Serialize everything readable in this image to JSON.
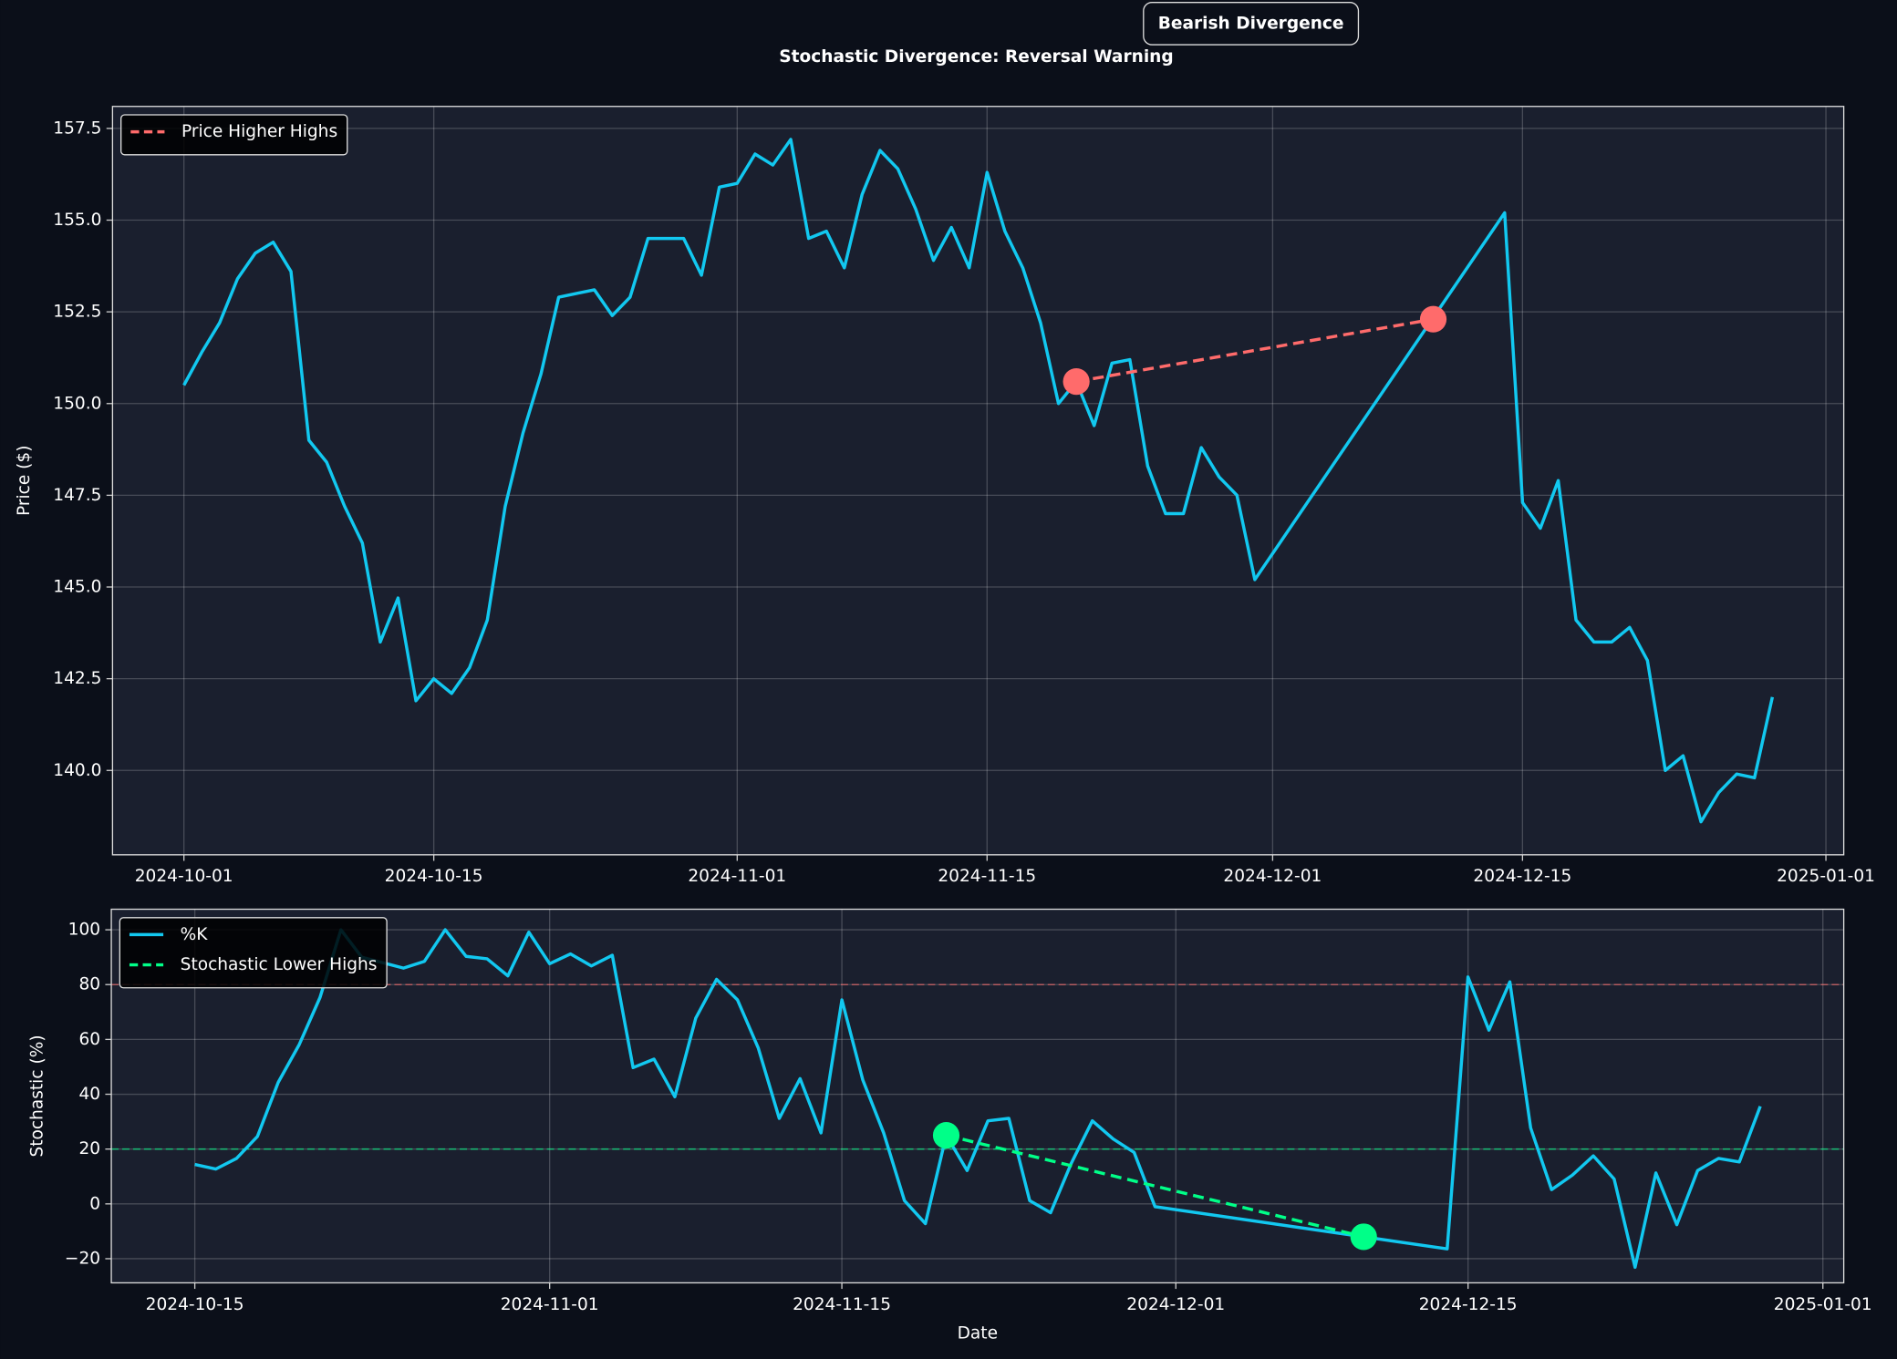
{
  "chart_data": [
    {
      "type": "line",
      "title": "Stochastic Divergence: Reversal Warning",
      "annotation": "Bearish Divergence",
      "ylabel": "Price ($)",
      "xlim": [
        "2024-09-27",
        "2025-01-02"
      ],
      "xticks": [
        "2024-10-01",
        "2024-10-15",
        "2024-11-01",
        "2024-11-15",
        "2024-12-01",
        "2024-12-15",
        "2025-01-01"
      ],
      "ylim": [
        137.7,
        158.1
      ],
      "yticks": [
        {
          "value": 140,
          "label": "140.0"
        },
        142.5,
        {
          "value": 145,
          "label": "145.0"
        },
        147.5,
        {
          "value": 150,
          "label": "150.0"
        },
        152.5,
        {
          "value": 155,
          "label": "155.0"
        },
        157.5
      ],
      "grid": true,
      "legend": "upper left",
      "series": [
        {
          "color": "#12c8f0",
          "x": [
            "2024-10-01",
            "2024-10-02",
            "2024-10-03",
            "2024-10-04",
            "2024-10-05",
            "2024-10-06",
            "2024-10-07",
            "2024-10-08",
            "2024-10-09",
            "2024-10-10",
            "2024-10-11",
            "2024-10-12",
            "2024-10-13",
            "2024-10-14",
            "2024-10-15",
            "2024-10-16",
            "2024-10-17",
            "2024-10-18",
            "2024-10-19",
            "2024-10-20",
            "2024-10-21",
            "2024-10-22",
            "2024-10-23",
            "2024-10-24",
            "2024-10-25",
            "2024-10-26",
            "2024-10-27",
            "2024-10-28",
            "2024-10-29",
            "2024-10-30",
            "2024-10-31",
            "2024-11-01",
            "2024-11-02",
            "2024-11-03",
            "2024-11-04",
            "2024-11-05",
            "2024-11-06",
            "2024-11-07",
            "2024-11-08",
            "2024-11-09",
            "2024-11-10",
            "2024-11-11",
            "2024-11-12",
            "2024-11-13",
            "2024-11-14",
            "2024-11-15",
            "2024-11-16",
            "2024-11-17",
            "2024-11-18",
            "2024-11-19",
            "2024-11-20",
            "2024-11-21",
            "2024-11-22",
            "2024-11-23",
            "2024-11-24",
            "2024-11-25",
            "2024-11-26",
            "2024-11-27",
            "2024-11-28",
            "2024-11-29",
            "2024-11-30",
            "2024-12-14",
            "2024-12-15",
            "2024-12-16",
            "2024-12-17",
            "2024-12-18",
            "2024-12-19",
            "2024-12-20",
            "2024-12-21",
            "2024-12-22",
            "2024-12-23",
            "2024-12-24",
            "2024-12-25",
            "2024-12-26",
            "2024-12-27",
            "2024-12-28",
            "2024-12-29"
          ],
          "values": [
            150.5,
            151.4,
            152.2,
            153.4,
            154.1,
            154.4,
            153.6,
            149.0,
            148.4,
            147.2,
            146.2,
            143.5,
            144.7,
            141.9,
            142.5,
            142.1,
            142.8,
            144.1,
            147.2,
            149.2,
            150.8,
            152.9,
            153.0,
            153.1,
            152.4,
            152.9,
            154.5,
            154.5,
            154.5,
            153.5,
            155.9,
            156.0,
            156.8,
            156.5,
            157.2,
            154.5,
            154.7,
            153.7,
            155.7,
            156.9,
            156.4,
            155.3,
            153.9,
            154.8,
            153.7,
            156.3,
            154.7,
            153.7,
            152.2,
            150.0,
            150.6,
            149.4,
            151.1,
            151.2,
            148.3,
            147.0,
            147.0,
            148.8,
            148.0,
            147.5,
            145.2,
            155.2,
            147.3,
            146.6,
            147.9,
            144.1,
            143.5,
            143.5,
            143.9,
            143.0,
            140.0,
            140.4,
            138.6,
            139.4,
            139.9,
            139.8,
            142.0
          ]
        },
        {
          "name": "Price Higher Highs",
          "color": "#ff6b6b",
          "dashed": true,
          "marker": true,
          "x": [
            "2024-11-20",
            "2024-12-10"
          ],
          "values": [
            150.6,
            152.3
          ]
        }
      ]
    },
    {
      "type": "line",
      "ylabel": "Stochastic (%)",
      "xlabel": "Date",
      "xlim": [
        "2024-10-11",
        "2025-01-02"
      ],
      "xticks": [
        "2024-10-15",
        "2024-11-01",
        "2024-11-15",
        "2024-12-01",
        "2024-12-15",
        "2025-01-01"
      ],
      "ylim": [
        -28.8,
        107.5
      ],
      "yticks": [
        {
          "value": -20,
          "label": "−20"
        },
        0,
        20,
        40,
        60,
        80,
        100
      ],
      "grid": true,
      "legend": "upper left",
      "hlines": [
        {
          "value": 80,
          "color": "#ff6b6b"
        },
        {
          "value": 20,
          "color": "#00ff88"
        }
      ],
      "series": [
        {
          "name": "%K",
          "color": "#12c8f0",
          "x": [
            "2024-10-15",
            "2024-10-16",
            "2024-10-17",
            "2024-10-18",
            "2024-10-19",
            "2024-10-20",
            "2024-10-21",
            "2024-10-22",
            "2024-10-23",
            "2024-10-24",
            "2024-10-25",
            "2024-10-26",
            "2024-10-27",
            "2024-10-28",
            "2024-10-29",
            "2024-10-30",
            "2024-10-31",
            "2024-11-01",
            "2024-11-02",
            "2024-11-03",
            "2024-11-04",
            "2024-11-05",
            "2024-11-06",
            "2024-11-07",
            "2024-11-08",
            "2024-11-09",
            "2024-11-10",
            "2024-11-11",
            "2024-11-12",
            "2024-11-13",
            "2024-11-14",
            "2024-11-15",
            "2024-11-16",
            "2024-11-17",
            "2024-11-18",
            "2024-11-19",
            "2024-11-20",
            "2024-11-21",
            "2024-11-22",
            "2024-11-23",
            "2024-11-24",
            "2024-11-25",
            "2024-11-26",
            "2024-11-27",
            "2024-11-28",
            "2024-11-29",
            "2024-11-30",
            "2024-12-14",
            "2024-12-15",
            "2024-12-16",
            "2024-12-17",
            "2024-12-18",
            "2024-12-19",
            "2024-12-20",
            "2024-12-21",
            "2024-12-22",
            "2024-12-23",
            "2024-12-24",
            "2024-12-25",
            "2024-12-26",
            "2024-12-27",
            "2024-12-28",
            "2024-12-29"
          ],
          "values": [
            14.4,
            12.7,
            16.6,
            24.6,
            44.4,
            58.1,
            75.3,
            100,
            90,
            88,
            86,
            88.5,
            100,
            90.3,
            89.4,
            83.2,
            99.1,
            87.6,
            91.2,
            86.8,
            90.7,
            49.7,
            52.8,
            39.1,
            67.8,
            81.9,
            74.4,
            56.8,
            31.2,
            45.7,
            25.9,
            74.4,
            45.3,
            25.9,
            1.2,
            -7.2,
            25.0,
            12.2,
            30.3,
            31.2,
            1.2,
            -3.2,
            14.9,
            30.3,
            23.7,
            18.8,
            -1.0,
            -16.4,
            82.8,
            63.4,
            81.0,
            27.7,
            5.2,
            10.5,
            17.5,
            9.1,
            -23.1,
            11.3,
            -7.6,
            12.2,
            16.6,
            15.3,
            35.6
          ]
        },
        {
          "name": "Stochastic Lower Highs",
          "color": "#00ff88",
          "dashed": true,
          "marker": true,
          "x": [
            "2024-11-20",
            "2024-12-10"
          ],
          "values": [
            25.0,
            -12.0
          ]
        }
      ]
    }
  ]
}
